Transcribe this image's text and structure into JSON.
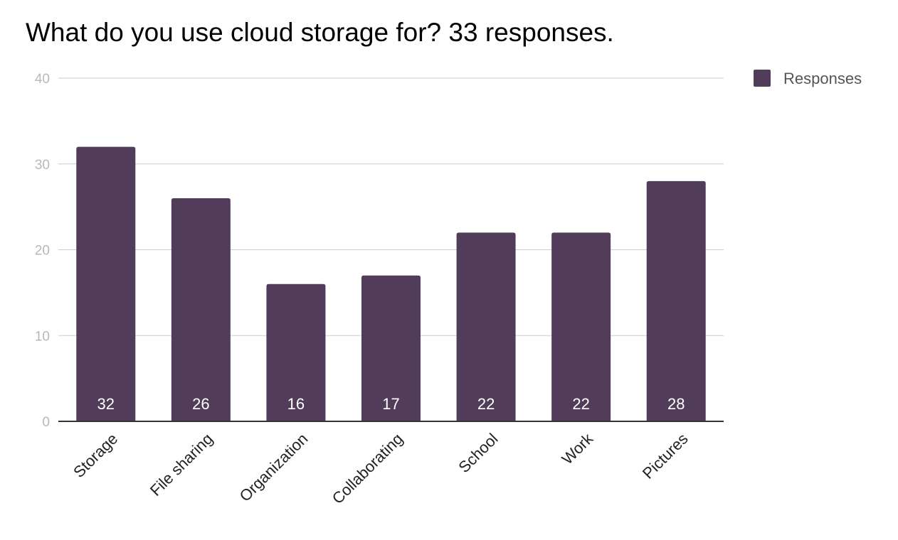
{
  "chart_data": {
    "type": "bar",
    "title": "What do you use cloud storage for? 33 responses.",
    "xlabel": "",
    "ylabel": "",
    "categories": [
      "Storage",
      "File sharing",
      "Organization",
      "Collaborating",
      "School",
      "Work",
      "Pictures"
    ],
    "series": [
      {
        "name": "Responses",
        "values": [
          32,
          26,
          16,
          17,
          22,
          22,
          28
        ],
        "color": "#513c5a"
      }
    ],
    "ylim": [
      0,
      40
    ],
    "yticks": [
      0,
      10,
      20,
      30,
      40
    ],
    "grid": true,
    "legend_position": "top-right",
    "data_labels": true,
    "data_label_position": "inside-bottom"
  }
}
